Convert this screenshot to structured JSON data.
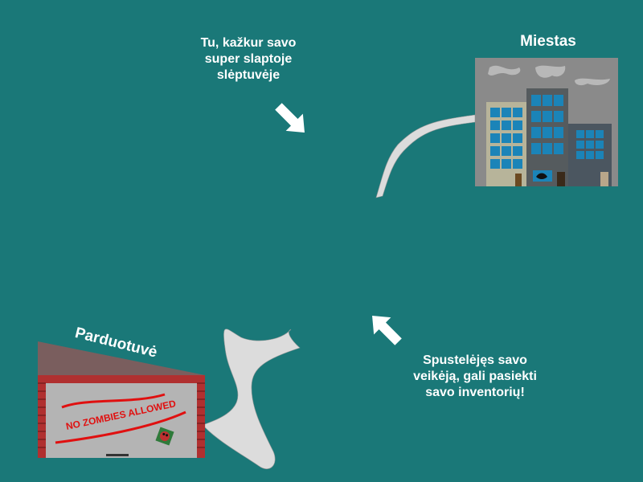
{
  "map": {
    "background_color": "#1a7878",
    "hints": {
      "hideout": "Tu, kažkur savo\nsuper slaptoje\nslėptuvėje",
      "inventory": "Spustelėjęs savo\nveikėją, gali pasiekti\nsavo inventorių!"
    },
    "locations": {
      "city": {
        "label": "Miestas",
        "icon": "city-buildings-icon"
      },
      "shop": {
        "label": "Parduotuvė",
        "icon": "shop-building-icon",
        "sign": "NO ZOMBIES ALLOWED"
      }
    },
    "colors": {
      "path": "#dcdcdc",
      "arrow": "#ffffff",
      "shop_sign": "#e01010",
      "brick": "#b03030"
    }
  }
}
